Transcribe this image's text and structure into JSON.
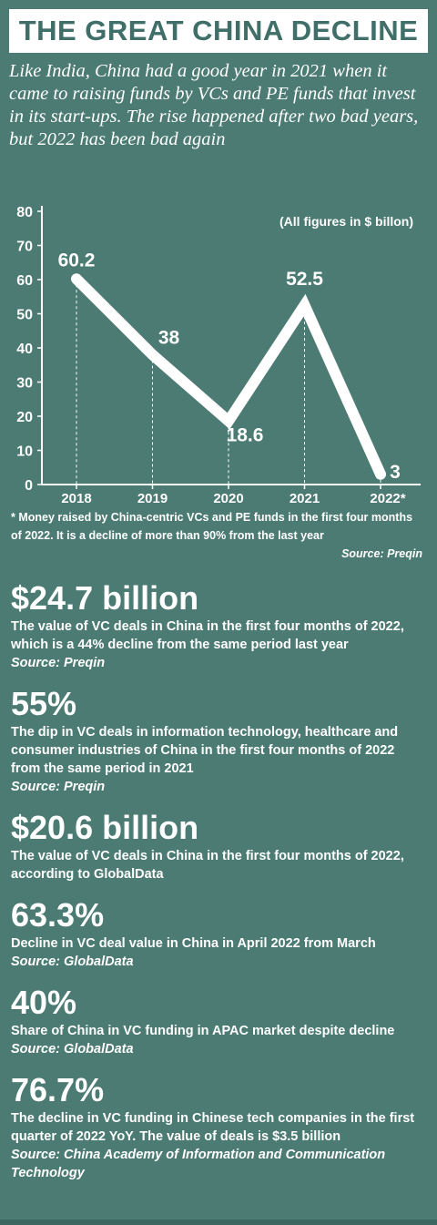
{
  "header": {
    "title": "THE GREAT CHINA DECLINE"
  },
  "intro": "Like India, China had a good year in 2021 when it came to raising funds by VCs and PE funds that invest in its start-ups. The rise happened after two bad years, but 2022 has been bad again",
  "chart_data": {
    "type": "line",
    "title": "",
    "unit_note": "(All figures in $ billon)",
    "categories": [
      "2018",
      "2019",
      "2020",
      "2021",
      "2022*"
    ],
    "series": [
      {
        "values": [
          60.2,
          38,
          18.6,
          52.5,
          3
        ]
      }
    ],
    "data_labels": [
      "60.2",
      "38",
      "18.6",
      "52.5",
      "3"
    ],
    "yticks": [
      0,
      10,
      20,
      30,
      40,
      50,
      60,
      70,
      80
    ],
    "ylim": [
      0,
      80
    ],
    "xlabel": "",
    "ylabel": "",
    "grid": false,
    "line_color": "#ffffff"
  },
  "footnote": {
    "text": "* Money raised by China-centric VCs and PE funds in the first four months of 2022. It is a decline of more than 90% from the last year",
    "source": "Source: Preqin"
  },
  "stats": [
    {
      "value": "$24.7 billion",
      "desc": "The value of VC deals in China in the first four months of 2022, which is a 44% decline from the same period last year",
      "source": "Source: Preqin"
    },
    {
      "value": "55%",
      "desc": "The dip in VC deals in information technology, healthcare and consumer industries of China in the first four months of 2022 from the same period in 2021",
      "source": "Source: Preqin"
    },
    {
      "value": "$20.6 billion",
      "desc": "The value of VC deals in China in the first four months of 2022, according to GlobalData",
      "source": ""
    },
    {
      "value": "63.3%",
      "desc": "Decline in VC deal value in China in April 2022 from March",
      "source": "Source: GlobalData"
    },
    {
      "value": "40%",
      "desc": "Share of China in VC funding in APAC market despite decline",
      "source": "Source: GlobalData"
    },
    {
      "value": "76.7%",
      "desc": "The decline in VC funding in Chinese tech companies in the first quarter of 2022 YoY. The value of deals is $3.5 billion",
      "source": "Source: China Academy of Information and Communication Technology"
    }
  ]
}
